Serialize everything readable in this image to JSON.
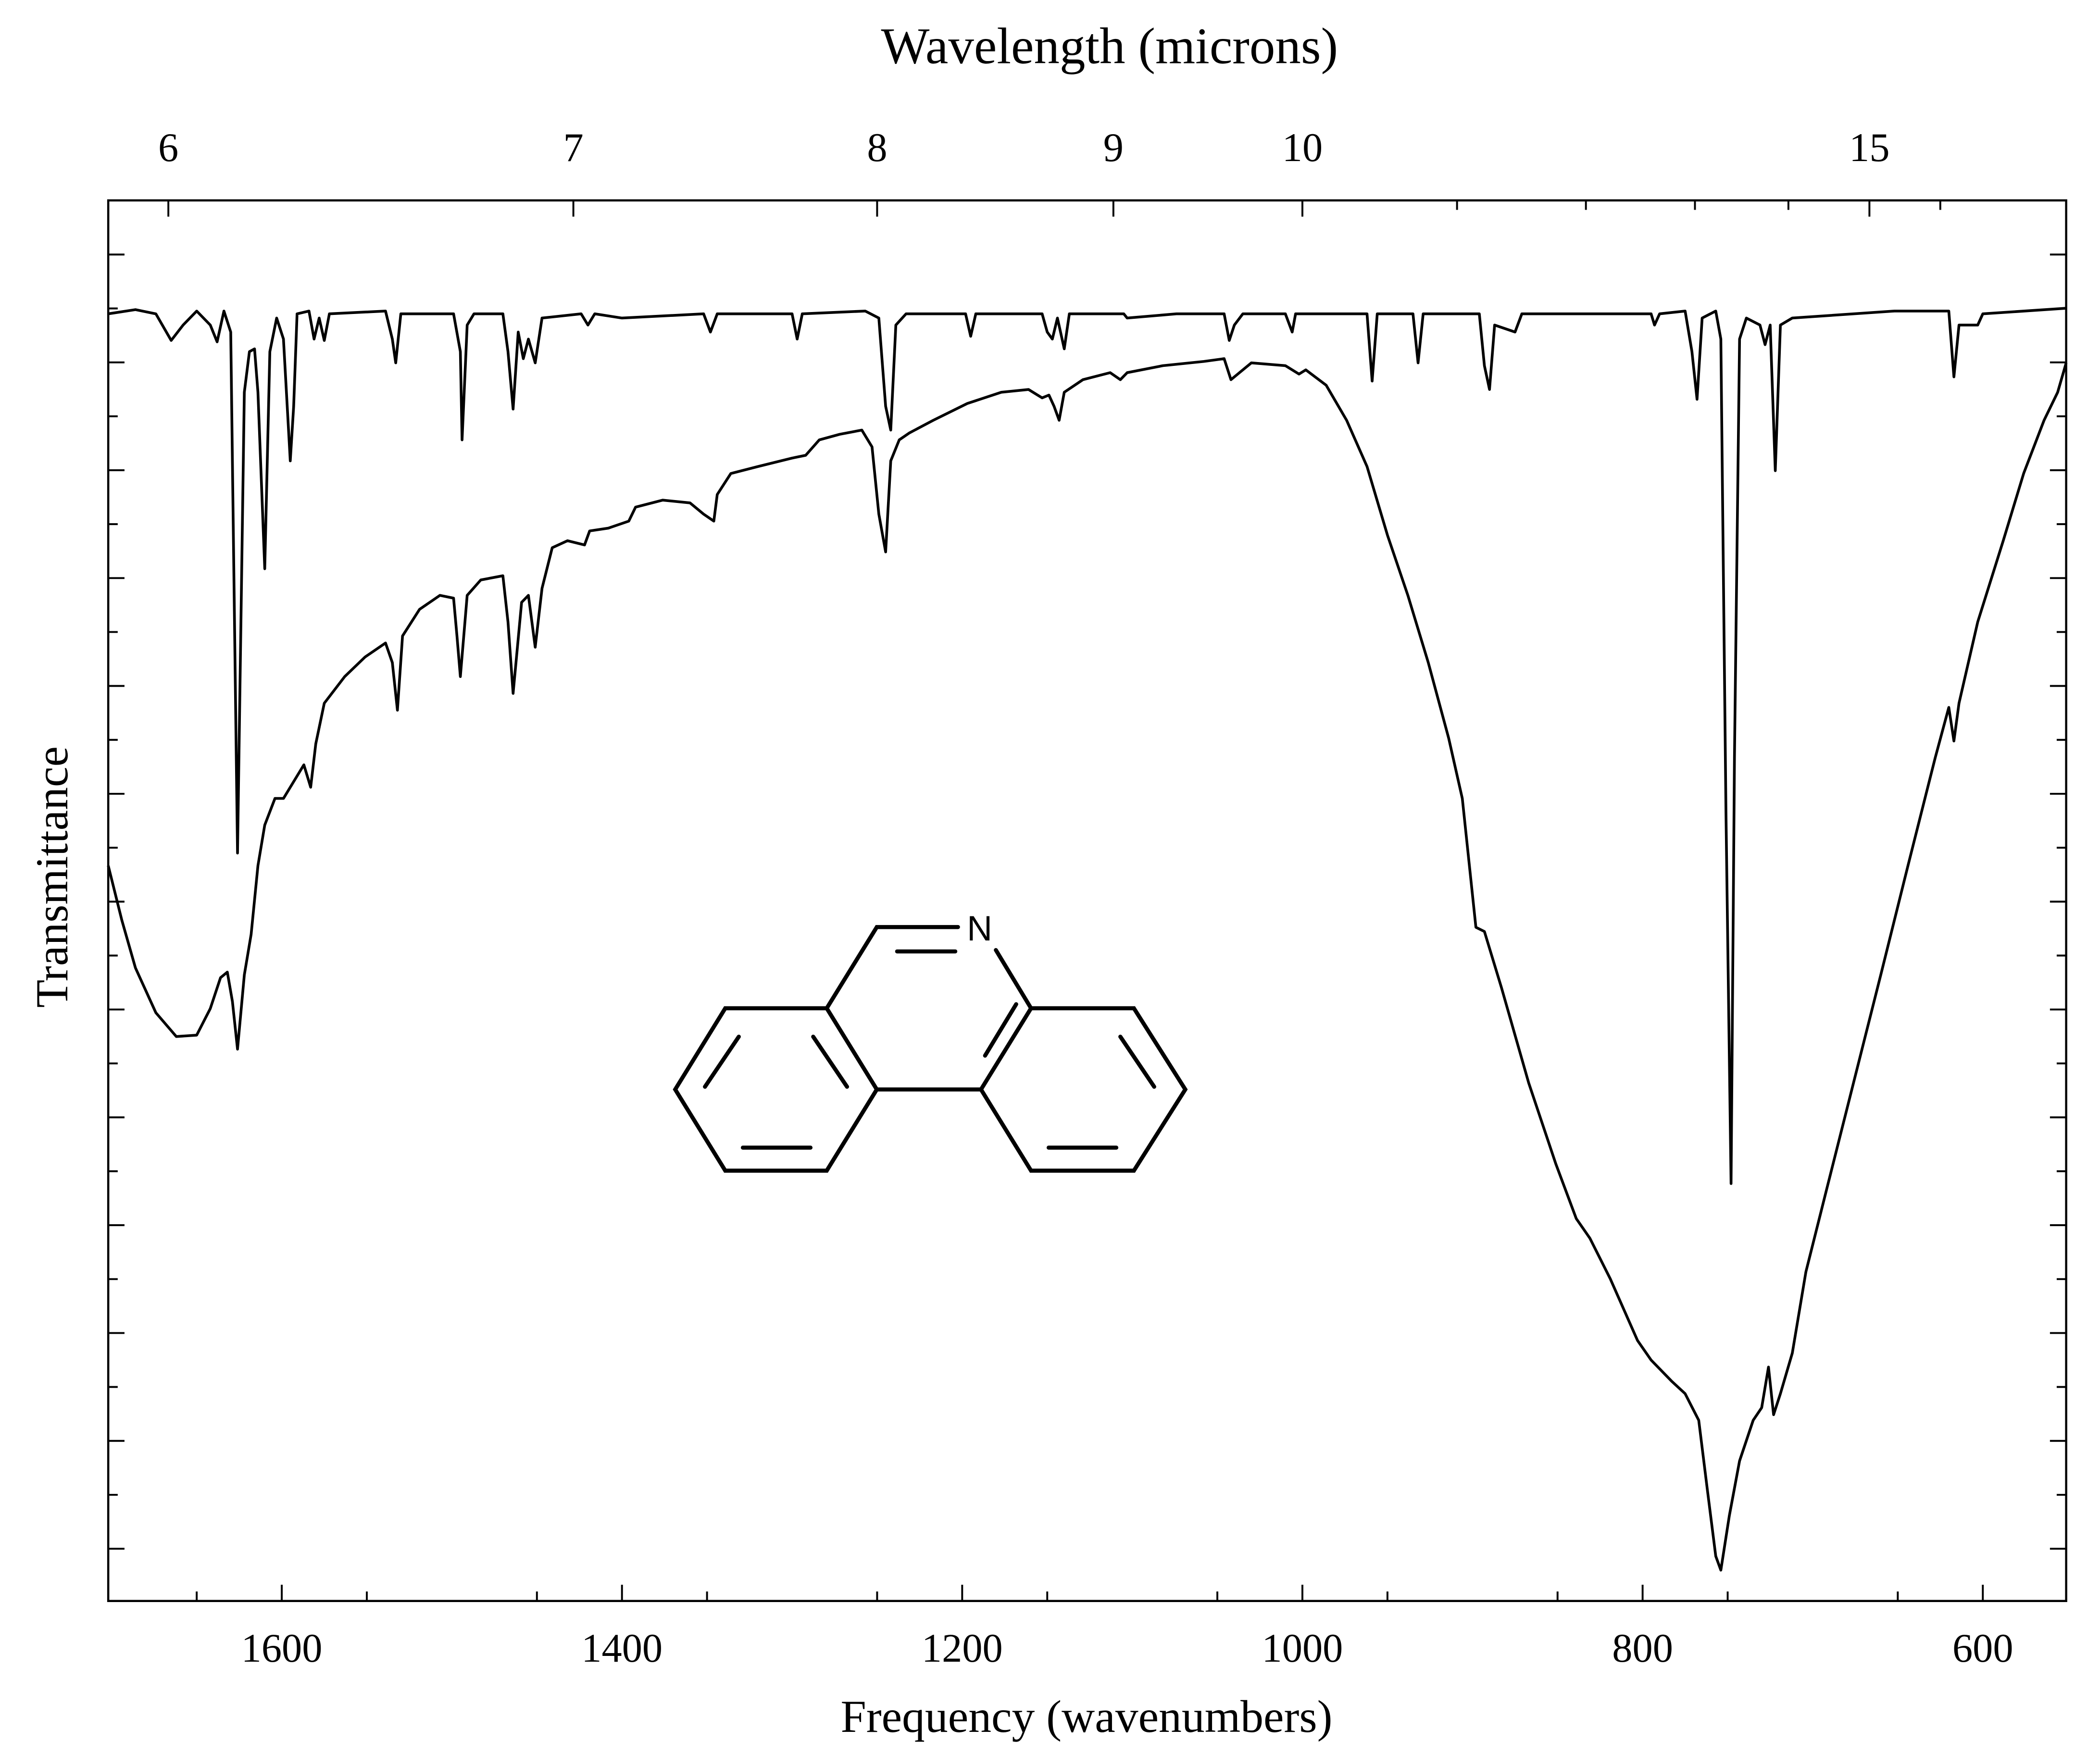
{
  "chart_data": {
    "type": "line",
    "x_label": "Frequency (wavenumbers)",
    "y_label": "Transmittance",
    "x2_label": "Wavelength (microns)",
    "structure_label": "N",
    "xlim": [
      1702,
      551
    ],
    "ylim": [
      0,
      100
    ],
    "xticks": [
      1600,
      1400,
      1200,
      1000,
      800,
      600
    ],
    "xminor_ticks": [
      1650,
      1550,
      1450,
      1350,
      1250,
      1150,
      1050,
      950,
      850,
      750,
      650
    ],
    "x2ticks": [
      6,
      7,
      8,
      9,
      10,
      15
    ],
    "x2minor_ticks": [
      11,
      12,
      13,
      14,
      16
    ],
    "series": [
      {
        "color": "#000000",
        "x": [
          1702,
          1686,
          1674,
          1665,
          1658,
          1650,
          1642,
          1638,
          1634,
          1630,
          1626,
          1622,
          1619,
          1616,
          1614,
          1610,
          1607,
          1603,
          1599,
          1595,
          1593,
          1591,
          1584,
          1581,
          1578,
          1575,
          1572,
          1539,
          1535,
          1533,
          1530,
          1499,
          1495,
          1494,
          1491,
          1487,
          1470,
          1467,
          1464,
          1461,
          1458,
          1455,
          1451,
          1447,
          1424,
          1420,
          1416,
          1400,
          1352,
          1348,
          1344,
          1300,
          1297,
          1294,
          1257,
          1249,
          1245,
          1242,
          1239,
          1233,
          1198,
          1195,
          1192,
          1153,
          1150,
          1147,
          1144,
          1140,
          1137,
          1105,
          1103,
          1074,
          1046,
          1043,
          1040,
          1035,
          1010,
          1006,
          1004,
          962,
          959,
          956,
          935,
          932,
          929,
          896,
          893,
          890,
          887,
          875,
          871,
          795,
          793,
          790,
          775,
          771,
          768,
          765,
          757,
          754,
          751,
          748,
          746,
          743,
          739,
          731,
          728,
          725,
          722,
          719,
          712,
          652,
          620,
          617,
          614,
          603,
          600,
          551
        ],
        "values": [
          91.9,
          92.2,
          91.9,
          90.0,
          91.1,
          92.1,
          91.1,
          89.9,
          92.1,
          90.6,
          53.4,
          86.3,
          89.2,
          89.4,
          86.3,
          73.7,
          89.2,
          91.6,
          90.1,
          81.4,
          85.3,
          91.9,
          92.1,
          90.1,
          91.6,
          90.0,
          91.9,
          92.1,
          90.1,
          88.4,
          91.9,
          91.9,
          89.2,
          82.9,
          91.1,
          91.9,
          91.9,
          89.2,
          85.1,
          90.6,
          88.7,
          90.1,
          88.4,
          91.6,
          91.9,
          91.1,
          91.9,
          91.6,
          91.9,
          90.6,
          91.9,
          91.9,
          90.1,
          91.9,
          92.1,
          91.6,
          85.3,
          83.6,
          91.1,
          91.9,
          91.9,
          90.3,
          91.9,
          91.9,
          90.6,
          90.1,
          91.6,
          89.4,
          91.9,
          91.9,
          91.6,
          91.9,
          91.9,
          90.0,
          91.1,
          91.9,
          91.9,
          90.6,
          91.9,
          91.9,
          87.1,
          91.9,
          91.9,
          88.4,
          91.9,
          91.9,
          88.2,
          86.5,
          91.1,
          90.6,
          91.9,
          91.9,
          91.1,
          91.9,
          92.1,
          89.2,
          85.8,
          91.6,
          92.1,
          90.1,
          56.3,
          29.8,
          60.2,
          90.1,
          91.6,
          91.1,
          89.7,
          91.1,
          80.7,
          91.1,
          91.6,
          92.1,
          92.1,
          87.4,
          91.1,
          91.1,
          91.9,
          92.3
        ]
      },
      {
        "color": "#000000",
        "x": [
          1702,
          1694,
          1686,
          1674,
          1662,
          1650,
          1642,
          1636,
          1632,
          1629,
          1626,
          1622,
          1618,
          1614,
          1610,
          1604,
          1599,
          1592,
          1587,
          1583,
          1580,
          1575,
          1563,
          1551,
          1539,
          1535,
          1532,
          1529,
          1519,
          1507,
          1499,
          1497,
          1495,
          1491,
          1483,
          1470,
          1467,
          1464,
          1459,
          1455,
          1451,
          1447,
          1441,
          1432,
          1422,
          1419,
          1408,
          1396,
          1392,
          1376,
          1360,
          1352,
          1346,
          1344,
          1336,
          1320,
          1300,
          1292,
          1284,
          1272,
          1259,
          1253,
          1249,
          1245,
          1242,
          1237,
          1231,
          1217,
          1197,
          1177,
          1161,
          1153,
          1149,
          1146,
          1143,
          1140,
          1129,
          1113,
          1107,
          1103,
          1082,
          1058,
          1046,
          1042,
          1038,
          1030,
          1010,
          1002,
          998,
          986,
          974,
          962,
          950,
          938,
          926,
          914,
          906,
          898,
          893,
          883,
          867,
          851,
          839,
          831,
          819,
          803,
          795,
          783,
          775,
          767,
          762,
          757,
          754,
          749,
          743,
          735,
          730,
          726,
          723,
          719,
          712,
          704,
          692,
          676,
          660,
          644,
          628,
          620,
          617,
          614,
          603,
          588,
          576,
          564,
          556,
          551
        ],
        "values": [
          52.5,
          48.6,
          45.2,
          42.0,
          40.3,
          40.4,
          42.3,
          44.5,
          44.9,
          42.8,
          39.4,
          44.7,
          47.6,
          52.5,
          55.4,
          57.3,
          57.3,
          58.7,
          59.7,
          58.1,
          61.2,
          64.1,
          66.0,
          67.4,
          68.4,
          67.0,
          63.6,
          68.9,
          70.8,
          71.8,
          71.6,
          68.9,
          66.0,
          71.8,
          72.9,
          73.2,
          69.9,
          64.8,
          71.3,
          71.8,
          68.1,
          72.3,
          75.2,
          75.7,
          75.4,
          76.4,
          76.6,
          77.1,
          78.1,
          78.6,
          78.4,
          77.6,
          77.1,
          79.0,
          80.5,
          81.0,
          81.6,
          81.8,
          82.9,
          83.3,
          83.6,
          82.4,
          77.6,
          74.9,
          81.4,
          82.9,
          83.4,
          84.3,
          85.5,
          86.3,
          86.5,
          85.9,
          86.1,
          85.3,
          84.3,
          86.3,
          87.2,
          87.7,
          87.2,
          87.7,
          88.2,
          88.5,
          88.7,
          87.2,
          87.6,
          88.4,
          88.2,
          87.6,
          87.9,
          86.8,
          84.3,
          81.0,
          76.1,
          71.8,
          67.0,
          61.6,
          57.3,
          48.1,
          47.8,
          43.8,
          37.0,
          31.2,
          27.3,
          25.9,
          23.0,
          18.6,
          17.2,
          15.7,
          14.8,
          12.9,
          8.0,
          3.2,
          2.2,
          6.1,
          10.0,
          12.9,
          13.8,
          16.7,
          13.3,
          14.8,
          17.7,
          23.5,
          29.3,
          37.0,
          44.7,
          52.5,
          60.2,
          63.8,
          61.4,
          64.1,
          69.9,
          75.7,
          80.5,
          84.3,
          86.3,
          88.4
        ]
      }
    ]
  }
}
